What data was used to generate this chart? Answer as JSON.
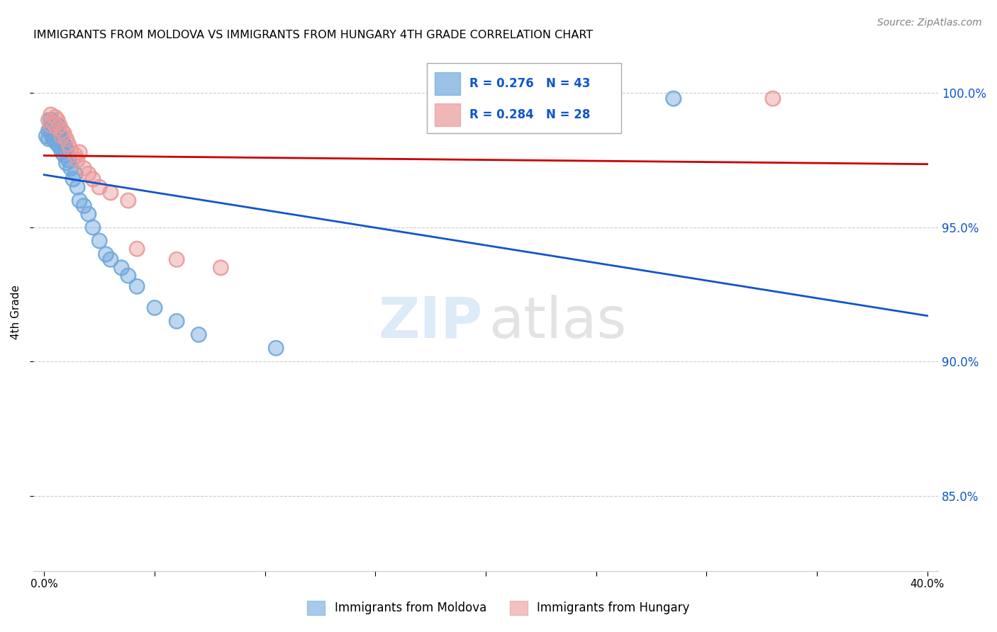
{
  "title": "IMMIGRANTS FROM MOLDOVA VS IMMIGRANTS FROM HUNGARY 4TH GRADE CORRELATION CHART",
  "source": "Source: ZipAtlas.com",
  "ylabel": "4th Grade",
  "ytick_values": [
    1.0,
    0.95,
    0.9,
    0.85
  ],
  "ytick_labels": [
    "100.0%",
    "95.0%",
    "90.0%",
    "85.0%"
  ],
  "moldova_color": "#6fa8dc",
  "hungary_color": "#ea9999",
  "moldova_line_color": "#1155cc",
  "hungary_line_color": "#cc0000",
  "legend_text_color": "#1155cc",
  "moldova_x": [
    0.001,
    0.002,
    0.002,
    0.003,
    0.003,
    0.003,
    0.004,
    0.004,
    0.004,
    0.005,
    0.005,
    0.005,
    0.006,
    0.006,
    0.006,
    0.007,
    0.007,
    0.008,
    0.008,
    0.009,
    0.009,
    0.01,
    0.01,
    0.011,
    0.012,
    0.013,
    0.014,
    0.015,
    0.016,
    0.018,
    0.02,
    0.022,
    0.025,
    0.028,
    0.03,
    0.035,
    0.038,
    0.042,
    0.05,
    0.06,
    0.07,
    0.105,
    0.285
  ],
  "moldova_y": [
    0.984,
    0.986,
    0.983,
    0.99,
    0.987,
    0.985,
    0.989,
    0.986,
    0.983,
    0.987,
    0.985,
    0.982,
    0.988,
    0.985,
    0.981,
    0.984,
    0.98,
    0.982,
    0.978,
    0.981,
    0.977,
    0.979,
    0.974,
    0.975,
    0.972,
    0.968,
    0.97,
    0.965,
    0.96,
    0.958,
    0.955,
    0.95,
    0.945,
    0.94,
    0.938,
    0.935,
    0.932,
    0.928,
    0.92,
    0.915,
    0.91,
    0.905,
    0.998
  ],
  "hungary_x": [
    0.002,
    0.003,
    0.003,
    0.004,
    0.005,
    0.005,
    0.006,
    0.006,
    0.007,
    0.008,
    0.008,
    0.009,
    0.01,
    0.011,
    0.012,
    0.014,
    0.015,
    0.016,
    0.018,
    0.02,
    0.022,
    0.025,
    0.03,
    0.038,
    0.042,
    0.06,
    0.08,
    0.33
  ],
  "hungary_y": [
    0.99,
    0.988,
    0.992,
    0.989,
    0.991,
    0.988,
    0.99,
    0.987,
    0.988,
    0.986,
    0.984,
    0.985,
    0.983,
    0.981,
    0.979,
    0.977,
    0.975,
    0.978,
    0.972,
    0.97,
    0.968,
    0.965,
    0.963,
    0.96,
    0.942,
    0.938,
    0.935,
    0.998
  ],
  "legend_r1": "R = 0.276",
  "legend_n1": "N = 43",
  "legend_r2": "R = 0.284",
  "legend_n2": "N = 28",
  "bottom_legend1": "Immigrants from Moldova",
  "bottom_legend2": "Immigrants from Hungary"
}
